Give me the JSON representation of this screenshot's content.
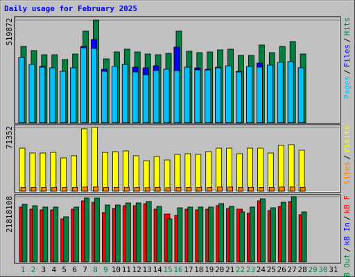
{
  "chart_data": [
    {
      "type": "bar",
      "title": "Daily usage for February 2025",
      "legend_separator": "/",
      "ylim": [
        0,
        519872
      ],
      "yticks": [
        519872
      ],
      "series": [
        {
          "name": "Hits",
          "color": "#008040",
          "values": [
            386400,
            365300,
            344300,
            344300,
            319700,
            347800,
            463700,
            519872,
            323200,
            358300,
            372400,
            358300,
            347800,
            344300,
            351300,
            463700,
            361800,
            354800,
            358300,
            368900,
            372400,
            340800,
            340800,
            393500,
            354800,
            386400,
            411000,
            347800,
            null,
            null,
            null
          ]
        },
        {
          "name": "Files",
          "color": "#0000ff",
          "values": [
            330200,
            295100,
            284600,
            277500,
            260000,
            277500,
            386400,
            421600,
            270500,
            284600,
            295100,
            281000,
            277500,
            288100,
            270500,
            382900,
            281000,
            277500,
            270500,
            281000,
            288100,
            260000,
            263500,
            302100,
            281000,
            298600,
            309100,
            277500,
            null,
            null,
            null
          ]
        },
        {
          "name": "Pages",
          "color": "#00c0ff",
          "values": [
            330200,
            295100,
            281000,
            277500,
            260000,
            277500,
            379400,
            375900,
            260000,
            284600,
            295100,
            256400,
            242400,
            263500,
            270500,
            263500,
            281000,
            267000,
            267000,
            277500,
            288100,
            256400,
            284600,
            281000,
            291600,
            305600,
            309100,
            277500,
            null,
            null,
            null
          ]
        }
      ]
    },
    {
      "type": "bar",
      "legend_separator": "/",
      "ylim": [
        0,
        71352
      ],
      "yticks": [
        71352
      ],
      "series": [
        {
          "name": "Visits",
          "color": "#ffff00",
          "values": [
            48100,
            42700,
            42700,
            43400,
            37200,
            39600,
            69800,
            71352,
            43400,
            44200,
            45000,
            39600,
            34100,
            38800,
            34900,
            41100,
            41900,
            41100,
            44200,
            48100,
            48100,
            41900,
            48100,
            48100,
            42700,
            51200,
            52000,
            45800,
            null,
            null,
            null
          ]
        },
        {
          "name": "Sites",
          "color": "#ff8000",
          "values": [
            4300,
            4300,
            4300,
            4300,
            4300,
            4300,
            4700,
            4700,
            4300,
            4300,
            4300,
            4300,
            4000,
            4300,
            4000,
            4300,
            4300,
            4300,
            4300,
            4700,
            4700,
            4300,
            4300,
            4300,
            4300,
            4700,
            4700,
            4300,
            null,
            null,
            null
          ]
        }
      ]
    },
    {
      "type": "bar",
      "legend_separator": "/",
      "ylim": [
        0,
        21818108
      ],
      "yticks": [
        21818108
      ],
      "categories": [
        "1",
        "2",
        "3",
        "4",
        "5",
        "6",
        "7",
        "8",
        "9",
        "10",
        "11",
        "12",
        "13",
        "14",
        "15",
        "16",
        "17",
        "18",
        "19",
        "20",
        "21",
        "22",
        "23",
        "24",
        "25",
        "26",
        "27",
        "28",
        "29",
        "30",
        "31"
      ],
      "label_colors": [
        "#008040",
        "#008040",
        "#000000",
        "#000000",
        "#000000",
        "#000000",
        "#000000",
        "#008040",
        "#008040",
        "#000000",
        "#000000",
        "#000000",
        "#000000",
        "#000000",
        "#008040",
        "#008040",
        "#000000",
        "#000000",
        "#000000",
        "#000000",
        "#000000",
        "#008040",
        "#008040",
        "#000000",
        "#000000",
        "#000000",
        "#000000",
        "#000000",
        "#008040",
        "#008040",
        "#000000"
      ],
      "series": [
        {
          "name": "kB F",
          "color": "#ff0000",
          "values": [
            18337000,
            17640000,
            17408000,
            17408000,
            14391000,
            17640000,
            20426000,
            19961000,
            16480000,
            17872000,
            18801000,
            18801000,
            19497000,
            17640000,
            16015000,
            15551000,
            17640000,
            17408000,
            17640000,
            18801000,
            17872000,
            17640000,
            16248000,
            20426000,
            17176000,
            18569000,
            20193000,
            15783000,
            null,
            null,
            null
          ]
        },
        {
          "name": "kB In",
          "color": "#0000ff",
          "values": [
            0,
            0,
            0,
            0,
            0,
            0,
            0,
            0,
            0,
            0,
            0,
            0,
            0,
            0,
            0,
            0,
            0,
            0,
            0,
            0,
            0,
            0,
            0,
            0,
            0,
            0,
            0,
            0,
            null,
            null,
            null
          ]
        },
        {
          "name": "kB Out",
          "color": "#008040",
          "values": [
            19265000,
            18801000,
            18337000,
            18337000,
            15087000,
            18337000,
            21354000,
            21354000,
            19033000,
            19033000,
            19729000,
            19729000,
            20193000,
            18569000,
            14391000,
            18104000,
            18337000,
            18337000,
            18337000,
            19497000,
            18569000,
            16712000,
            18337000,
            21122000,
            18104000,
            19961000,
            21818108,
            16712000,
            null,
            null,
            null
          ]
        }
      ]
    }
  ]
}
